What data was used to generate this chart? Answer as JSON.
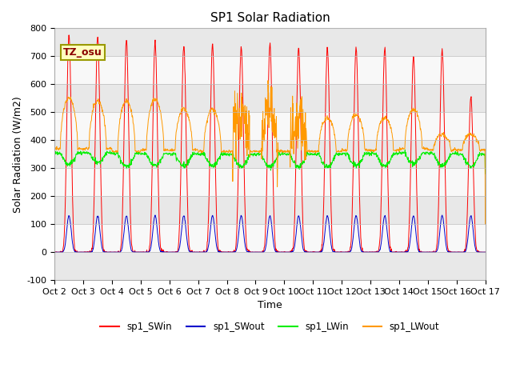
{
  "title": "SP1 Solar Radiation",
  "xlabel": "Time",
  "ylabel": "Solar Radiation (W/m2)",
  "ylim": [
    -100,
    800
  ],
  "tick_labels": [
    "Oct 2",
    "Oct 3",
    "Oct 4",
    "Oct 5",
    "Oct 6",
    "Oct 7",
    "Oct 8",
    "Oct 9",
    "Oct 10",
    "Oct 11",
    "Oct 12",
    "Oct 13",
    "Oct 14",
    "Oct 15",
    "Oct 16",
    "Oct 17"
  ],
  "colors": {
    "SWin": "#ff0000",
    "SWout": "#0000cc",
    "LWin": "#00ee00",
    "LWout": "#ff9900"
  },
  "legend_labels": [
    "sp1_SWin",
    "sp1_SWout",
    "sp1_LWin",
    "sp1_LWout"
  ],
  "tz_label": "TZ_osu",
  "sw_peaks": [
    775,
    770,
    760,
    750,
    735,
    740,
    730,
    745,
    730,
    730,
    730,
    730,
    700,
    720,
    555
  ],
  "lw_out_day_peaks": [
    550,
    540,
    540,
    548,
    510,
    510,
    495,
    490,
    480,
    480,
    490,
    480,
    510,
    420,
    420
  ],
  "lw_out_night": [
    370,
    370,
    360,
    365,
    365,
    360,
    360,
    360,
    360,
    360,
    365,
    365,
    370,
    365,
    365
  ],
  "lw_in_day_dip": [
    315,
    320,
    305,
    310,
    308,
    310,
    305,
    305,
    305,
    305,
    310,
    308,
    315,
    310,
    305
  ],
  "lw_in_night": [
    355,
    355,
    352,
    352,
    352,
    350,
    350,
    350,
    350,
    350,
    352,
    352,
    355,
    352,
    350
  ],
  "sw_out_peak": 130,
  "lw_out_drop_days": [
    7,
    8,
    9
  ],
  "lw_out_drop_vals": [
    200,
    160,
    250
  ],
  "band_colors": [
    "#e8e8e8",
    "#f8f8f8"
  ],
  "title_fontsize": 11,
  "axis_fontsize": 9,
  "tick_fontsize": 8
}
